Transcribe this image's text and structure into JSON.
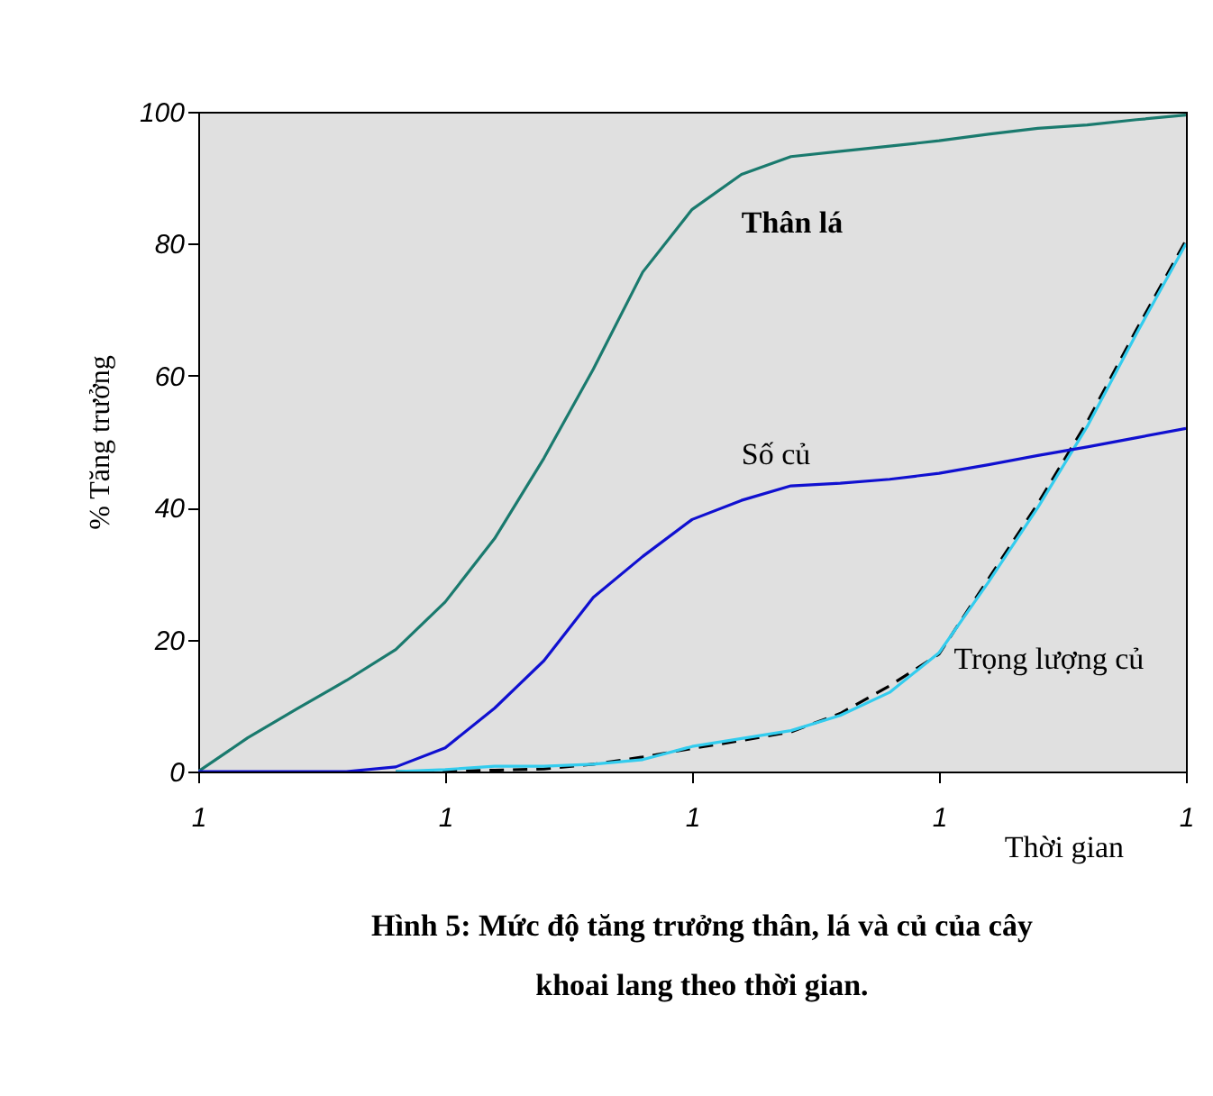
{
  "chart_data": {
    "type": "line",
    "xlabel": "Thời gian",
    "ylabel": "% Tăng trưởng",
    "categories": [
      "1",
      null,
      null,
      null,
      null,
      "1",
      null,
      null,
      null,
      null,
      "1",
      null,
      null,
      null,
      null,
      "1",
      null,
      null,
      null,
      null,
      "1"
    ],
    "ylim": [
      0,
      100
    ],
    "yticks": [
      0,
      20,
      40,
      60,
      80,
      100
    ],
    "grid": false,
    "marker": "none",
    "series": [
      {
        "name": "Thân lá",
        "color": "#1a7a6e",
        "line_style": "solid",
        "values": [
          0,
          5.1,
          9.5,
          13.8,
          18.5,
          25.7,
          35.3,
          47.5,
          61,
          75.7,
          85.2,
          90.5,
          93.2,
          94,
          94.8,
          95.6,
          96.6,
          97.5,
          98,
          98.8,
          99.5
        ]
      },
      {
        "color": "#000000",
        "line_style": "dashed",
        "values": [
          null,
          null,
          null,
          null,
          0,
          0,
          0.2,
          0.4,
          1.1,
          2.2,
          3.5,
          4.7,
          6,
          8.8,
          13,
          17.8,
          29.2,
          40.6,
          53,
          67,
          80.5
        ]
      },
      {
        "name": "Trọng lượng củ",
        "color": "#33ccee",
        "line_style": "solid",
        "values": [
          null,
          null,
          null,
          null,
          0,
          0.3,
          0.8,
          0.8,
          1.1,
          1.8,
          3.8,
          5,
          6.2,
          8.5,
          12,
          18,
          28.7,
          40,
          52.3,
          66.4,
          80
        ]
      },
      {
        "name": "Số củ",
        "color": "#1010d0",
        "line_style": "solid",
        "values": [
          0,
          0,
          0,
          0,
          0.7,
          3.6,
          9.6,
          16.8,
          26.4,
          32.6,
          38.2,
          41.1,
          43.3,
          43.7,
          44.3,
          45.2,
          46.5,
          47.9,
          49.2,
          50.6,
          52
        ]
      }
    ],
    "annotations": [
      "Hình 5: Mức độ tăng trưởng thân, lá và củ của cây\nkhoai lang theo thời gian."
    ]
  }
}
